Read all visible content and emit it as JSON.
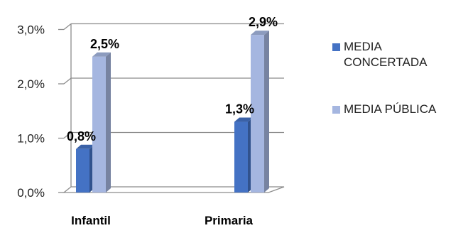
{
  "chart_data": {
    "type": "bar",
    "title": "",
    "xlabel": "",
    "ylabel": "",
    "categories": [
      "Infantil",
      "Primaria"
    ],
    "series": [
      {
        "name": "MEDIA CONCERTADA",
        "color": "#4472C4",
        "values": [
          0.8,
          1.3
        ],
        "labels": [
          "0,8%",
          "1,3%"
        ]
      },
      {
        "name": "MEDIA PÚBLICA",
        "color": "#A5B6E0",
        "values": [
          2.5,
          2.9
        ],
        "labels": [
          "2,5%",
          "2,9%"
        ]
      }
    ],
    "ylim": [
      0,
      3
    ],
    "yticks": [
      0,
      1,
      2,
      3
    ],
    "ytick_labels": [
      "0,0%",
      "1,0%",
      "2,0%",
      "3,0%"
    ],
    "grid": true,
    "legend_position": "right"
  }
}
